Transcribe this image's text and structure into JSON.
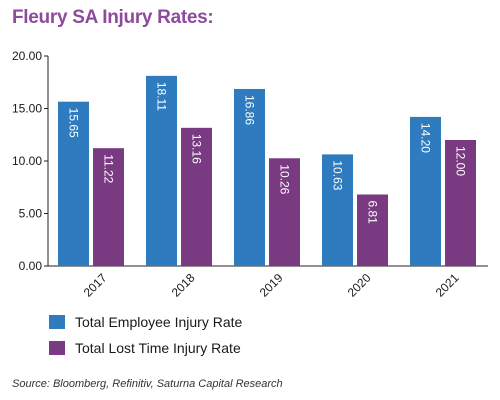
{
  "chart_data": {
    "type": "bar",
    "title": "Fleury SA Injury Rates:",
    "categories": [
      "2017",
      "2018",
      "2019",
      "2020",
      "2021"
    ],
    "series": [
      {
        "name": "Total Employee Injury Rate",
        "values": [
          15.65,
          18.11,
          16.86,
          10.63,
          14.2
        ],
        "labels": [
          "15.65",
          "18.11",
          "16.86",
          "10.63",
          "14.20"
        ],
        "color": "#2e7bbf"
      },
      {
        "name": "Total Lost Time Injury Rate",
        "values": [
          11.22,
          13.16,
          10.26,
          6.81,
          12.0
        ],
        "labels": [
          "11.22",
          "13.16",
          "10.26",
          "6.81",
          "12.00"
        ],
        "color": "#7a3a82"
      }
    ],
    "y_ticks": [
      "0.00",
      "5.00",
      "10.00",
      "15.00",
      "20.00"
    ],
    "ylim": [
      0,
      20
    ],
    "xlabel": "",
    "ylabel": "",
    "grid": false,
    "legend_position": "bottom-left",
    "data_label_position": "inside-top-rotated",
    "x_tick_rotation": "diagonal",
    "source": "Source: Bloomberg, Refinitiv, Saturna Capital Research"
  }
}
